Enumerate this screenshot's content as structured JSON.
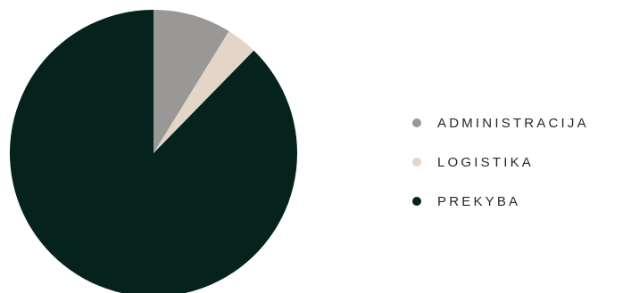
{
  "chart_data": {
    "type": "pie",
    "title": "",
    "legend_position": "right",
    "start_angle_deg": 0,
    "direction": "clockwise",
    "slices": [
      {
        "label": "ADMINISTRACIJA",
        "value": 8.8,
        "color": "#9a9897"
      },
      {
        "label": "LOGISTIKA",
        "value": 3.5,
        "color": "#e3d5c7"
      },
      {
        "label": "PREKYBA",
        "value": 87.7,
        "color": "#05231c"
      }
    ]
  }
}
